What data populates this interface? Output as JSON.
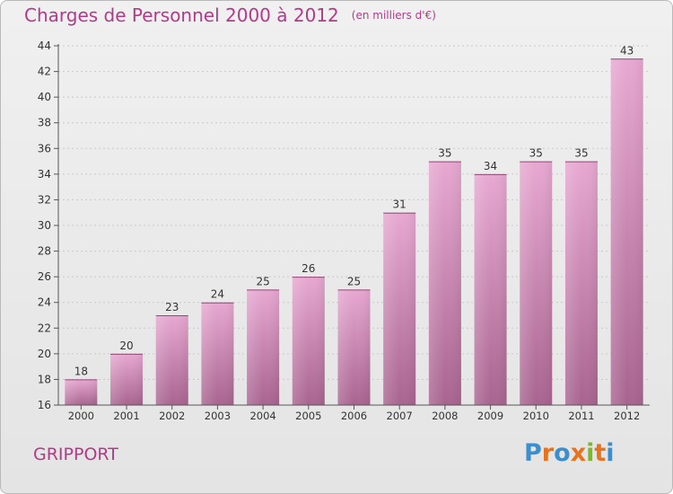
{
  "header": {
    "title": "Charges de Personnel 2000 à 2012",
    "subtitle": "(en milliers d'€)"
  },
  "footer": {
    "commune": "GRIPPORT",
    "logo": "Proxiti"
  },
  "colors": {
    "text_accent": "#b33a88",
    "bar_top": "#e7a8d1",
    "bar_bottom": "#a8648f",
    "logo_letters": [
      "#3b8fcf",
      "#e7731f",
      "#3b8fcf",
      "#e7731f",
      "#7ab929",
      "#e7731f",
      "#3b8fcf"
    ]
  },
  "chart_data": {
    "type": "bar",
    "title": "Charges de Personnel 2000 à 2012",
    "subtitle": "(en milliers d'€)",
    "xlabel": "",
    "ylabel": "",
    "categories": [
      "2000",
      "2001",
      "2002",
      "2003",
      "2004",
      "2005",
      "2006",
      "2007",
      "2008",
      "2009",
      "2010",
      "2011",
      "2012"
    ],
    "values": [
      18,
      20,
      23,
      24,
      25,
      26,
      25,
      31,
      35,
      34,
      35,
      35,
      43
    ],
    "ylim": [
      16,
      44
    ],
    "yticks": [
      16,
      18,
      20,
      22,
      24,
      26,
      28,
      30,
      32,
      34,
      36,
      38,
      40,
      42,
      44
    ],
    "grid": true,
    "legend": "none"
  }
}
